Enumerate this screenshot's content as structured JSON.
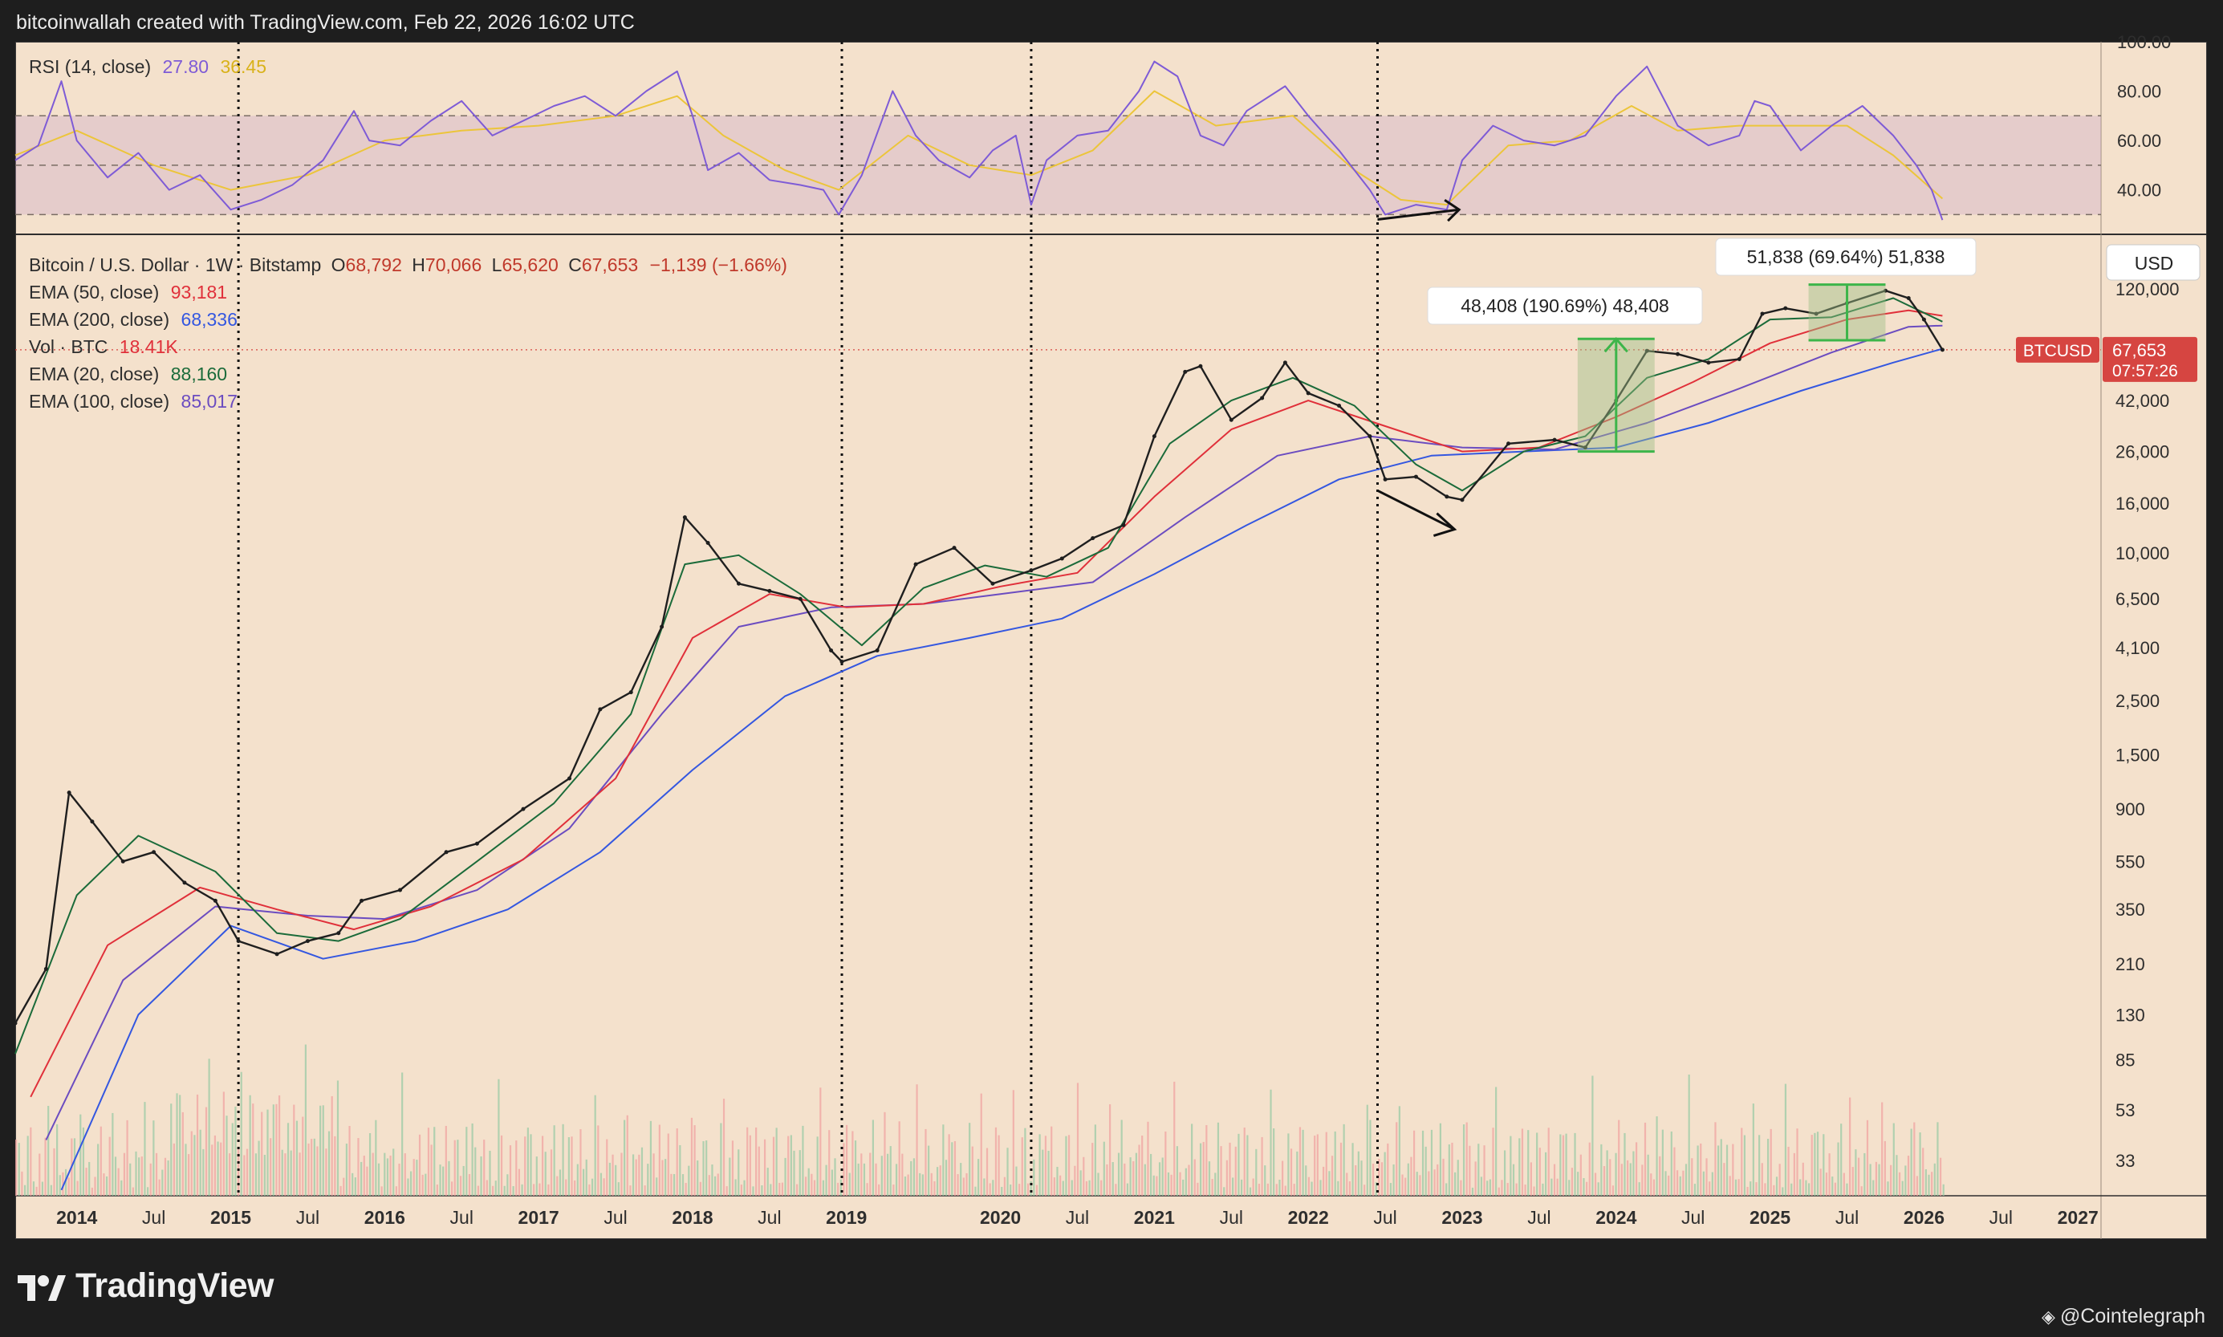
{
  "header": {
    "attribution": "bitcoinwallah created with TradingView.com, Feb 22, 2026 16:02 UTC"
  },
  "rsi_legend": {
    "name": "RSI (14, close)",
    "rsi_value": "27.80",
    "ma_value": "36.45"
  },
  "main_legend": {
    "symbol_line": "Bitcoin / U.S. Dollar · 1W · Bitstamp",
    "open_label": "O",
    "open": "68,792",
    "high_label": "H",
    "high": "70,066",
    "low_label": "L",
    "low": "65,620",
    "close_label": "C",
    "close": "67,653",
    "change": "−1,139 (−1.66%)",
    "ema50_label": "EMA (50, close)",
    "ema50_value": "93,181",
    "ema200_label": "EMA (200, close)",
    "ema200_value": "68,336",
    "vol_label": "Vol · BTC",
    "vol_value": "18.41K",
    "ema20_label": "EMA (20, close)",
    "ema20_value": "88,160",
    "ema100_label": "EMA (100, close)",
    "ema100_value": "85,017"
  },
  "currency_button": "USD",
  "price_tag": {
    "symbol": "BTCUSD",
    "price": "67,653",
    "countdown": "07:57:26"
  },
  "annotations": {
    "rally_2023_label": "48,408 (190.69%) 48,408",
    "range_2025_label": "51,838 (69.64%) 51,838"
  },
  "footer": {
    "brand": "TradingView",
    "credit": "@Cointelegraph"
  },
  "colors": {
    "background": "#f4e1cc",
    "ema20": "#1b6b3a",
    "ema50": "#e0303a",
    "ema100": "#6b4cc0",
    "ema200": "#3457e0",
    "rsi": "#7e5bd6",
    "rsi_ma": "#ecc53a",
    "price_tag": "#d64541",
    "up_volume": "#9bc9a6",
    "down_volume": "#f0a3a1"
  },
  "chart_data": [
    {
      "type": "line",
      "panel": "RSI (14, close)",
      "y_ticks": [
        "100.00",
        "80.00",
        "60.00",
        "40.00"
      ],
      "ylim": [
        22,
        100
      ],
      "reference_lines": [
        70,
        50,
        30
      ],
      "series": [
        {
          "name": "RSI (14, close)",
          "x": [
            2013.6,
            2013.75,
            2013.9,
            2014.0,
            2014.2,
            2014.4,
            2014.6,
            2014.8,
            2015.0,
            2015.2,
            2015.4,
            2015.6,
            2015.8,
            2015.9,
            2016.1,
            2016.3,
            2016.5,
            2016.7,
            2016.9,
            2017.1,
            2017.3,
            2017.5,
            2017.7,
            2017.9,
            2018.0,
            2018.1,
            2018.3,
            2018.5,
            2018.7,
            2018.85,
            2018.95,
            2019.1,
            2019.3,
            2019.45,
            2019.6,
            2019.8,
            2019.95,
            2020.1,
            2020.2,
            2020.3,
            2020.5,
            2020.7,
            2020.9,
            2021.0,
            2021.15,
            2021.3,
            2021.45,
            2021.6,
            2021.85,
            2022.0,
            2022.2,
            2022.4,
            2022.5,
            2022.7,
            2022.9,
            2023.0,
            2023.2,
            2023.4,
            2023.6,
            2023.8,
            2024.0,
            2024.2,
            2024.4,
            2024.6,
            2024.8,
            2024.9,
            2025.0,
            2025.2,
            2025.4,
            2025.6,
            2025.8,
            2025.95,
            2026.05,
            2026.12
          ],
          "values": [
            52,
            58,
            84,
            60,
            45,
            55,
            40,
            46,
            32,
            36,
            42,
            52,
            72,
            60,
            58,
            68,
            76,
            62,
            68,
            74,
            78,
            70,
            80,
            88,
            70,
            48,
            55,
            44,
            42,
            40,
            30,
            46,
            80,
            62,
            52,
            45,
            56,
            62,
            34,
            52,
            62,
            64,
            80,
            92,
            86,
            62,
            58,
            72,
            82,
            70,
            56,
            40,
            30,
            34,
            32,
            52,
            66,
            60,
            58,
            62,
            78,
            90,
            66,
            58,
            62,
            76,
            74,
            56,
            66,
            74,
            62,
            50,
            40,
            27.8
          ]
        },
        {
          "name": "RSI MA",
          "x": [
            2013.6,
            2014.0,
            2014.5,
            2015.0,
            2015.5,
            2016.0,
            2016.5,
            2017.0,
            2017.5,
            2017.9,
            2018.2,
            2018.6,
            2018.95,
            2019.4,
            2019.8,
            2020.2,
            2020.6,
            2021.0,
            2021.4,
            2021.9,
            2022.3,
            2022.6,
            2022.9,
            2023.3,
            2023.7,
            2024.1,
            2024.4,
            2024.8,
            2025.1,
            2025.5,
            2025.8,
            2026.12
          ],
          "values": [
            54,
            64,
            50,
            40,
            46,
            60,
            64,
            66,
            70,
            78,
            62,
            48,
            40,
            62,
            50,
            46,
            56,
            80,
            66,
            70,
            48,
            36,
            34,
            58,
            60,
            74,
            64,
            66,
            66,
            66,
            54,
            36.45
          ]
        }
      ]
    },
    {
      "type": "line",
      "panel": "Bitcoin / U.S. Dollar · 1W · Bitstamp",
      "log_scale": true,
      "x_ticks": [
        "2014",
        "Jul",
        "2015",
        "Jul",
        "2016",
        "Jul",
        "2017",
        "Jul",
        "2018",
        "Jul",
        "2019",
        "2020",
        "Jul",
        "2021",
        "Jul",
        "2022",
        "Jul",
        "2023",
        "Jul",
        "2024",
        "Jul",
        "2025",
        "Jul",
        "2026",
        "Jul",
        "2027"
      ],
      "y_ticks": [
        "120,000",
        "42,000",
        "26,000",
        "16,000",
        "10,000",
        "6,500",
        "4,100",
        "2,500",
        "1,500",
        "900",
        "550",
        "350",
        "210",
        "130",
        "85",
        "53",
        "33"
      ],
      "ylim": [
        25,
        150000
      ],
      "series": [
        {
          "name": "Bitcoin / U.S. Dollar",
          "x": [
            2013.6,
            2013.8,
            2013.95,
            2014.1,
            2014.3,
            2014.5,
            2014.7,
            2014.9,
            2015.05,
            2015.3,
            2015.5,
            2015.7,
            2015.85,
            2016.1,
            2016.4,
            2016.6,
            2016.9,
            2017.2,
            2017.4,
            2017.6,
            2017.8,
            2017.95,
            2018.1,
            2018.3,
            2018.5,
            2018.7,
            2018.9,
            2018.97,
            2019.2,
            2019.45,
            2019.7,
            2019.95,
            2020.2,
            2020.4,
            2020.6,
            2020.8,
            2021.0,
            2021.2,
            2021.3,
            2021.5,
            2021.7,
            2021.85,
            2022.0,
            2022.2,
            2022.4,
            2022.5,
            2022.7,
            2022.9,
            2023.0,
            2023.3,
            2023.6,
            2023.8,
            2024.0,
            2024.2,
            2024.4,
            2024.6,
            2024.8,
            2024.95,
            2025.1,
            2025.3,
            2025.5,
            2025.75,
            2025.9,
            2026.0,
            2026.12
          ],
          "values": [
            120,
            200,
            1050,
            800,
            550,
            600,
            450,
            380,
            260,
            230,
            260,
            280,
            380,
            420,
            600,
            650,
            900,
            1200,
            2300,
            2700,
            5000,
            14000,
            11000,
            7500,
            7000,
            6500,
            4000,
            3600,
            4000,
            9000,
            10500,
            7500,
            8500,
            9500,
            11500,
            13000,
            30000,
            55000,
            58000,
            35000,
            43000,
            60000,
            45000,
            40000,
            30000,
            20000,
            20500,
            17000,
            16500,
            28000,
            29000,
            27000,
            42000,
            67000,
            65000,
            60000,
            62000,
            95000,
            100000,
            95000,
            105000,
            118000,
            110000,
            90000,
            67653
          ]
        },
        {
          "name": "EMA (20, close)",
          "x": [
            2013.6,
            2014.0,
            2014.4,
            2014.9,
            2015.3,
            2015.7,
            2016.1,
            2016.6,
            2017.1,
            2017.6,
            2017.95,
            2018.3,
            2018.7,
            2019.1,
            2019.5,
            2019.9,
            2020.3,
            2020.7,
            2021.1,
            2021.5,
            2021.9,
            2022.3,
            2022.7,
            2023.0,
            2023.4,
            2023.8,
            2024.2,
            2024.6,
            2025.0,
            2025.4,
            2025.8,
            2026.12
          ],
          "values": [
            90,
            400,
            700,
            500,
            280,
            260,
            320,
            550,
            950,
            2200,
            9000,
            9800,
            6800,
            4200,
            7200,
            8900,
            8000,
            10500,
            28000,
            42000,
            52000,
            40000,
            23000,
            18000,
            26000,
            30000,
            52000,
            62000,
            90000,
            92000,
            110000,
            88160
          ]
        },
        {
          "name": "EMA (50, close)",
          "x": [
            2013.7,
            2014.2,
            2014.8,
            2015.3,
            2015.8,
            2016.3,
            2016.9,
            2017.5,
            2018.0,
            2018.5,
            2019.0,
            2019.5,
            2020.0,
            2020.5,
            2021.0,
            2021.5,
            2022.0,
            2022.5,
            2023.0,
            2023.5,
            2024.0,
            2024.5,
            2025.0,
            2025.5,
            2025.9,
            2026.12
          ],
          "values": [
            60,
            250,
            430,
            350,
            290,
            360,
            560,
            1200,
            4500,
            6800,
            6000,
            6200,
            7300,
            8300,
            17000,
            32000,
            42000,
            33000,
            26000,
            27000,
            36000,
            50000,
            72000,
            90000,
            98000,
            93181
          ]
        },
        {
          "name": "EMA (100, close)",
          "x": [
            2013.8,
            2014.3,
            2014.9,
            2015.5,
            2016.0,
            2016.6,
            2017.2,
            2017.8,
            2018.3,
            2018.9,
            2019.5,
            2020.0,
            2020.6,
            2021.2,
            2021.8,
            2022.4,
            2023.0,
            2023.6,
            2024.2,
            2024.8,
            2025.4,
            2025.9,
            2026.12
          ],
          "values": [
            40,
            180,
            360,
            330,
            320,
            420,
            750,
            2200,
            5000,
            6000,
            6200,
            6800,
            7600,
            14000,
            25000,
            30000,
            27000,
            26500,
            34000,
            47000,
            66000,
            84000,
            85017
          ]
        },
        {
          "name": "EMA (200, close)",
          "x": [
            2013.9,
            2014.4,
            2015.0,
            2015.6,
            2016.2,
            2016.8,
            2017.4,
            2018.0,
            2018.6,
            2019.2,
            2019.8,
            2020.4,
            2021.0,
            2021.6,
            2022.2,
            2022.8,
            2023.4,
            2024.0,
            2024.6,
            2025.2,
            2025.8,
            2026.12
          ],
          "values": [
            25,
            130,
            300,
            220,
            260,
            350,
            600,
            1300,
            2600,
            3800,
            4500,
            5400,
            8200,
            13000,
            20000,
            25000,
            26000,
            27000,
            34000,
            46000,
            60000,
            68336
          ]
        }
      ]
    }
  ]
}
